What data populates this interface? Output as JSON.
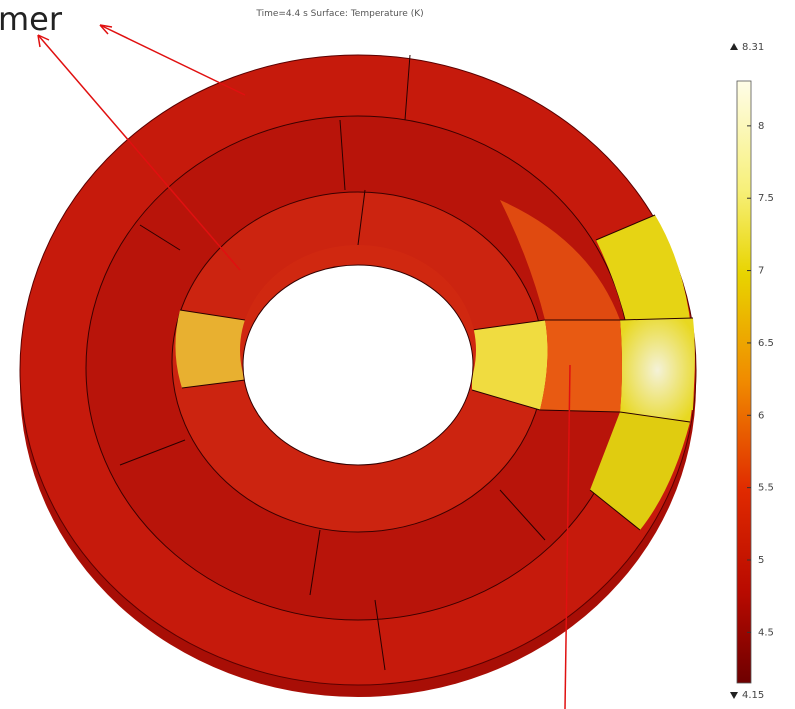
{
  "annotation": "mer",
  "title": "Time=4.4 s   Surface: Temperature (K)",
  "colorbar": {
    "max": 8.31,
    "min": 4.15,
    "ticks": [
      4.5,
      5,
      5.5,
      6,
      6.5,
      7,
      7.5,
      8
    ]
  }
}
